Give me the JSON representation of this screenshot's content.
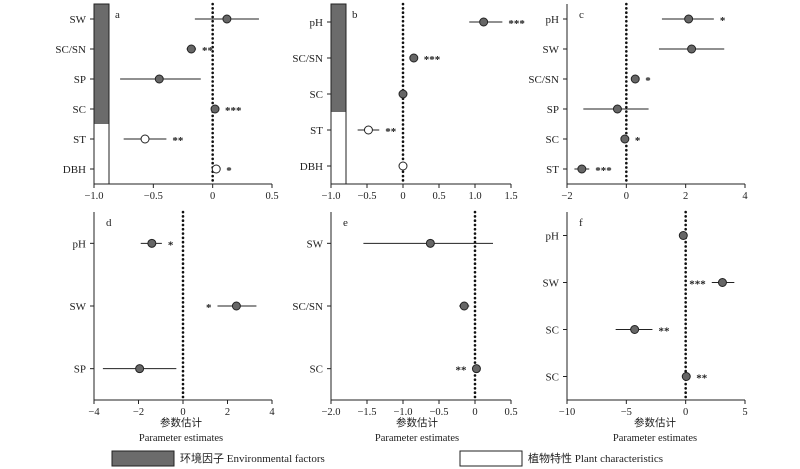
{
  "chart_data": [
    {
      "letter": "a",
      "type": "forest",
      "categories": [
        "SW",
        "SC/SN",
        "SP",
        "SC",
        "ST",
        "DBH"
      ],
      "estimates": [
        0.12,
        -0.18,
        -0.45,
        0.02,
        -0.57,
        0.03
      ],
      "ci_low": [
        -0.15,
        -0.22,
        -0.78,
        0.0,
        -0.75,
        0.0
      ],
      "ci_high": [
        0.39,
        -0.14,
        -0.1,
        0.04,
        -0.39,
        0.06
      ],
      "significance": [
        "",
        "**",
        "",
        "***",
        "**",
        "*"
      ],
      "group": [
        "env",
        "env",
        "env",
        "env",
        "plant",
        "plant"
      ],
      "xlim": [
        -1.0,
        0.5
      ],
      "xticks": [
        "−1.0",
        "−0.5",
        "0",
        "0.5"
      ],
      "xtick_values": [
        -1.0,
        -0.5,
        0,
        0.5
      ]
    },
    {
      "letter": "b",
      "type": "forest",
      "categories": [
        "pH",
        "SC/SN",
        "SC",
        "ST",
        "DBH"
      ],
      "estimates": [
        1.12,
        0.15,
        0.0,
        -0.48,
        0.0
      ],
      "ci_low": [
        0.92,
        0.13,
        -0.02,
        -0.63,
        -0.02
      ],
      "ci_high": [
        1.38,
        0.17,
        0.02,
        -0.33,
        0.02
      ],
      "significance": [
        "***",
        "***",
        "",
        "**",
        ""
      ],
      "group": [
        "env",
        "env",
        "env",
        "plant",
        "plant"
      ],
      "xlim": [
        -1.0,
        1.5
      ],
      "xticks": [
        "−1.0",
        "−0.5",
        "0",
        "0.5",
        "1.0",
        "1.5"
      ],
      "xtick_values": [
        -1.0,
        -0.5,
        0,
        0.5,
        1.0,
        1.5
      ]
    },
    {
      "letter": "c",
      "type": "forest",
      "categories": [
        "pH",
        "SW",
        "SC/SN",
        "SP",
        "SC",
        "ST"
      ],
      "estimates": [
        2.1,
        2.2,
        0.3,
        -0.3,
        -0.05,
        -1.5
      ],
      "ci_low": [
        1.2,
        1.1,
        0.25,
        -1.45,
        -0.08,
        -1.75
      ],
      "ci_high": [
        2.95,
        3.3,
        0.35,
        0.75,
        -0.02,
        -1.25
      ],
      "significance": [
        "*",
        "",
        "*",
        "",
        "*",
        "***"
      ],
      "xlim": [
        -2,
        4
      ],
      "xticks": [
        "−2",
        "0",
        "2",
        "4"
      ],
      "xtick_values": [
        -2,
        0,
        2,
        4
      ]
    },
    {
      "letter": "d",
      "type": "forest",
      "categories": [
        "pH",
        "SW",
        "SP"
      ],
      "estimates": [
        -1.4,
        2.4,
        -1.95
      ],
      "ci_low": [
        -1.9,
        1.55,
        -3.6
      ],
      "ci_high": [
        -0.95,
        3.3,
        -0.3
      ],
      "significance": [
        "*",
        "*",
        ""
      ],
      "sig_side": [
        "right",
        "left",
        "right"
      ],
      "xlim": [
        -4,
        4
      ],
      "xticks": [
        "−4",
        "−2",
        "0",
        "2",
        "4"
      ],
      "xtick_values": [
        -4,
        -2,
        0,
        2,
        4
      ]
    },
    {
      "letter": "e",
      "type": "forest",
      "categories": [
        "SW",
        "SC/SN",
        "SC"
      ],
      "estimates": [
        -0.62,
        -0.15,
        0.02
      ],
      "ci_low": [
        -1.55,
        -0.22,
        0.0
      ],
      "ci_high": [
        0.25,
        -0.08,
        0.04
      ],
      "significance": [
        "",
        "",
        "**"
      ],
      "sig_side": [
        "right",
        "right",
        "left"
      ],
      "xlim": [
        -2.0,
        0.5
      ],
      "xticks": [
        "−2.0",
        "−1.5",
        "−1.0",
        "−0.5",
        "0",
        "0.5"
      ],
      "xtick_values": [
        -2.0,
        -1.5,
        -1.0,
        -0.5,
        0,
        0.5
      ]
    },
    {
      "letter": "f",
      "type": "forest",
      "categories": [
        "pH",
        "SW",
        "SC",
        "SC"
      ],
      "estimates": [
        -0.2,
        3.1,
        -4.3,
        0.05
      ],
      "ci_low": [
        -0.5,
        2.2,
        -5.9,
        -0.15
      ],
      "ci_high": [
        0.1,
        4.1,
        -2.8,
        0.25
      ],
      "significance": [
        "",
        "***",
        "**",
        "**"
      ],
      "sig_side": [
        "right",
        "left",
        "right",
        "right"
      ],
      "xlim": [
        -10,
        5
      ],
      "xticks": [
        "−10",
        "−5",
        "0",
        "5"
      ],
      "xtick_values": [
        -10,
        -5,
        0,
        5
      ]
    }
  ],
  "axis_titles": {
    "zh": "参数估计",
    "en": "Parameter estimates"
  },
  "legend": {
    "env": "环境因子 Environmental factors",
    "plant": "植物特性 Plant characteristics"
  },
  "colors": {
    "env_fill": "#6b6b6b",
    "point_fill": "#666666",
    "open_point": "#ffffff",
    "stroke": "#222222"
  }
}
